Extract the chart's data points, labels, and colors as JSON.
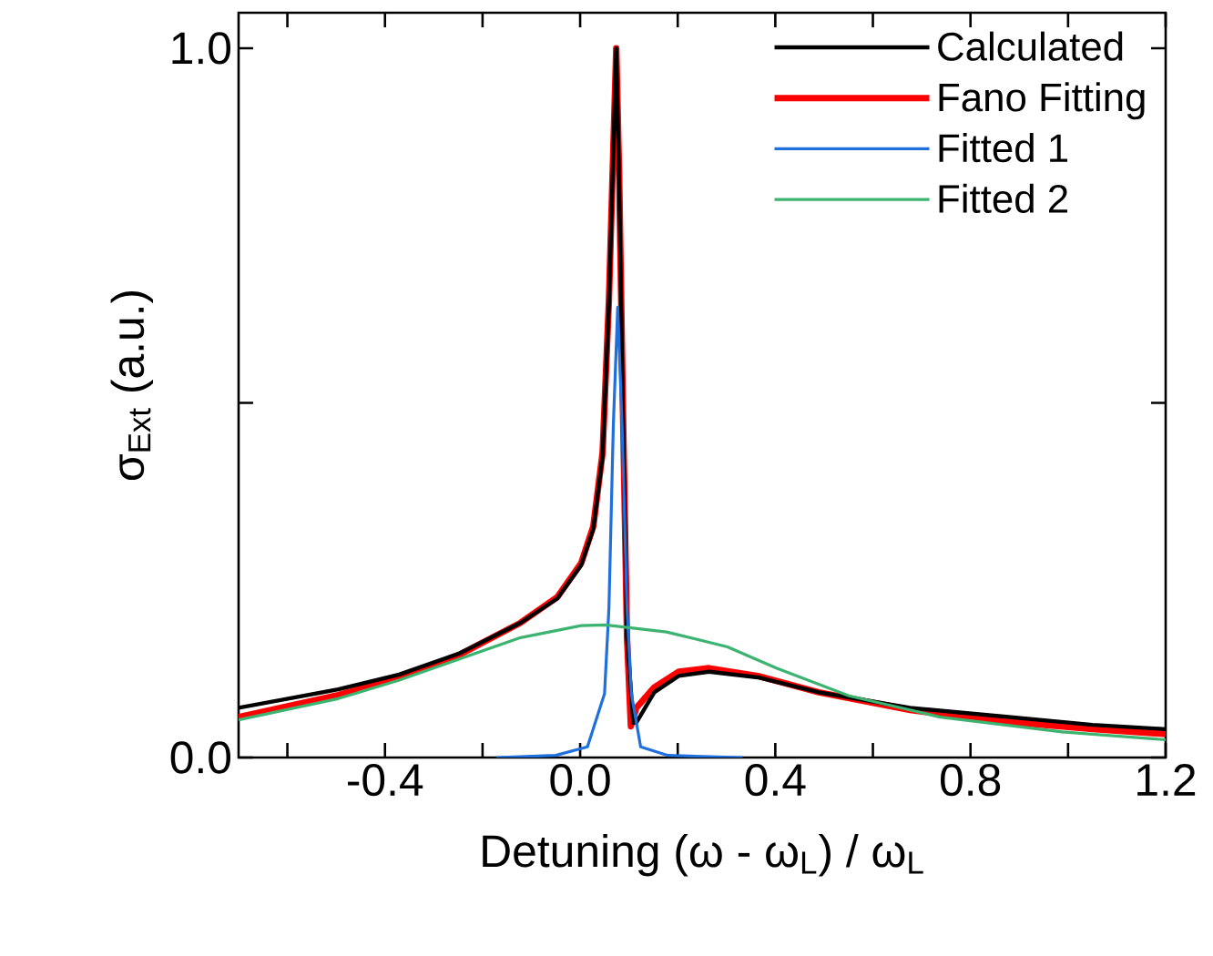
{
  "chart_data": {
    "type": "line",
    "xlabel": "Detuning (ω - ω$_{L}$) / ω$_{L}$",
    "ylabel": "σ$_{Ext}$ (a.u.)",
    "xlim": [
      -0.7,
      1.2
    ],
    "ylim": [
      0,
      1.05
    ],
    "xticks": [
      {
        "value": -0.6,
        "label": null
      },
      -0.4,
      {
        "value": -0.2,
        "label": null
      },
      {
        "value": 0,
        "label": "0.0"
      },
      {
        "value": 0.2,
        "label": null
      },
      0.4,
      {
        "value": 0.6,
        "label": null
      },
      0.8,
      {
        "value": 1.0,
        "label": null
      },
      1.2
    ],
    "yticks": [
      {
        "value": 0,
        "label": "0.0"
      },
      {
        "value": 0.5,
        "label": null
      },
      {
        "value": 1,
        "label": "1.0"
      }
    ],
    "legend": "top right",
    "grid": false,
    "marker": "none",
    "line_style": "solid",
    "series": [
      {
        "name": "Calculated",
        "color": "#000000",
        "x": [
          -0.7,
          -0.496,
          -0.371,
          -0.247,
          -0.122,
          -0.047,
          0.002,
          0.027,
          0.046,
          0.059,
          0.068,
          0.074,
          0.08,
          0.088,
          0.096,
          0.109,
          0.115,
          0.152,
          0.202,
          0.264,
          0.364,
          0.489,
          0.676,
          0.863,
          1.05,
          1.2
        ],
        "values": [
          0.07,
          0.096,
          0.117,
          0.147,
          0.19,
          0.224,
          0.271,
          0.322,
          0.425,
          0.639,
          0.853,
          1.0,
          0.81,
          0.468,
          0.169,
          0.049,
          0.049,
          0.092,
          0.115,
          0.121,
          0.113,
          0.092,
          0.07,
          0.058,
          0.046,
          0.04
        ]
      },
      {
        "name": "Fano Fitting",
        "color": "#ff0000",
        "x": [
          -0.7,
          -0.496,
          -0.371,
          -0.247,
          -0.122,
          -0.047,
          0.002,
          0.027,
          0.046,
          0.059,
          0.068,
          0.074,
          0.08,
          0.088,
          0.096,
          0.104,
          0.115,
          0.152,
          0.202,
          0.264,
          0.364,
          0.489,
          0.676,
          0.863,
          1.05,
          1.2
        ],
        "values": [
          0.057,
          0.088,
          0.112,
          0.145,
          0.19,
          0.226,
          0.274,
          0.326,
          0.43,
          0.645,
          0.86,
          1.0,
          0.82,
          0.48,
          0.17,
          0.044,
          0.07,
          0.099,
          0.121,
          0.126,
          0.115,
          0.092,
          0.067,
          0.051,
          0.04,
          0.033
        ]
      },
      {
        "name": "Fitted 1",
        "color": "#1f6fdc",
        "x": [
          -0.172,
          -0.05,
          0.015,
          0.05,
          0.059,
          0.068,
          0.077,
          0.086,
          0.096,
          0.105,
          0.124,
          0.18,
          0.333
        ],
        "values": [
          0,
          0.003,
          0.015,
          0.09,
          0.211,
          0.468,
          0.635,
          0.468,
          0.211,
          0.09,
          0.015,
          0.003,
          0
        ]
      },
      {
        "name": "Fitted 2",
        "color": "#3cb371",
        "x": [
          -0.7,
          -0.496,
          -0.371,
          -0.247,
          -0.122,
          0.002,
          0.052,
          0.177,
          0.302,
          0.402,
          0.551,
          0.738,
          0.988,
          1.2
        ],
        "values": [
          0.053,
          0.083,
          0.109,
          0.139,
          0.169,
          0.186,
          0.187,
          0.177,
          0.156,
          0.126,
          0.087,
          0.057,
          0.036,
          0.025
        ]
      }
    ]
  }
}
